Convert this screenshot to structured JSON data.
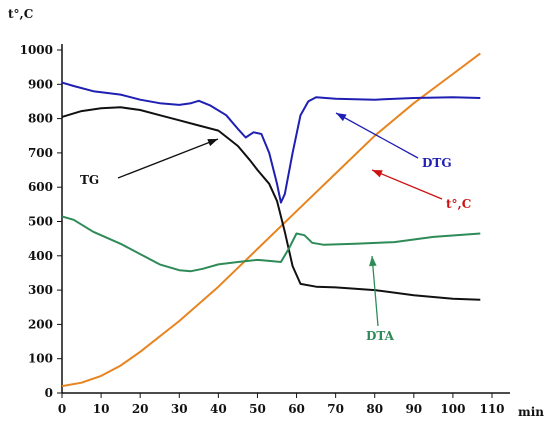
{
  "chart_data": {
    "type": "line",
    "ylabel": "t°,C",
    "xlabel": "min",
    "xlim": [
      0,
      110
    ],
    "ylim": [
      0,
      1000
    ],
    "x_ticks": [
      0,
      10,
      20,
      30,
      40,
      50,
      60,
      70,
      80,
      90,
      100,
      110
    ],
    "y_ticks": [
      0,
      100,
      200,
      300,
      400,
      500,
      600,
      700,
      800,
      900,
      1000
    ],
    "grid": false,
    "legend": "none",
    "series": [
      {
        "name": "t°,C",
        "color": "#e8841f",
        "points": [
          [
            0,
            20
          ],
          [
            5,
            30
          ],
          [
            10,
            50
          ],
          [
            15,
            80
          ],
          [
            20,
            120
          ],
          [
            30,
            210
          ],
          [
            40,
            310
          ],
          [
            50,
            420
          ],
          [
            60,
            530
          ],
          [
            70,
            640
          ],
          [
            80,
            750
          ],
          [
            90,
            845
          ],
          [
            100,
            930
          ],
          [
            107,
            990
          ]
        ]
      },
      {
        "name": "TG",
        "color": "#111111",
        "points": [
          [
            0,
            805
          ],
          [
            5,
            822
          ],
          [
            10,
            830
          ],
          [
            15,
            833
          ],
          [
            20,
            825
          ],
          [
            25,
            810
          ],
          [
            30,
            795
          ],
          [
            35,
            780
          ],
          [
            40,
            765
          ],
          [
            45,
            720
          ],
          [
            48,
            680
          ],
          [
            50,
            650
          ],
          [
            53,
            610
          ],
          [
            55,
            560
          ],
          [
            57,
            470
          ],
          [
            59,
            370
          ],
          [
            61,
            318
          ],
          [
            65,
            310
          ],
          [
            70,
            308
          ],
          [
            80,
            300
          ],
          [
            90,
            285
          ],
          [
            100,
            275
          ],
          [
            107,
            272
          ]
        ]
      },
      {
        "name": "DTG",
        "color": "#1f1fb3",
        "points": [
          [
            0,
            905
          ],
          [
            3,
            895
          ],
          [
            8,
            880
          ],
          [
            15,
            870
          ],
          [
            20,
            855
          ],
          [
            25,
            845
          ],
          [
            30,
            840
          ],
          [
            33,
            845
          ],
          [
            35,
            852
          ],
          [
            38,
            838
          ],
          [
            42,
            810
          ],
          [
            45,
            770
          ],
          [
            47,
            745
          ],
          [
            49,
            760
          ],
          [
            51,
            755
          ],
          [
            53,
            700
          ],
          [
            55,
            610
          ],
          [
            56,
            555
          ],
          [
            57,
            580
          ],
          [
            59,
            700
          ],
          [
            61,
            810
          ],
          [
            63,
            850
          ],
          [
            65,
            862
          ],
          [
            70,
            858
          ],
          [
            80,
            855
          ],
          [
            90,
            860
          ],
          [
            100,
            862
          ],
          [
            107,
            860
          ]
        ]
      },
      {
        "name": "DTA",
        "color": "#2e8b57",
        "points": [
          [
            0,
            515
          ],
          [
            3,
            505
          ],
          [
            8,
            470
          ],
          [
            15,
            435
          ],
          [
            20,
            405
          ],
          [
            25,
            375
          ],
          [
            30,
            358
          ],
          [
            33,
            355
          ],
          [
            36,
            362
          ],
          [
            40,
            375
          ],
          [
            45,
            382
          ],
          [
            50,
            388
          ],
          [
            53,
            385
          ],
          [
            56,
            382
          ],
          [
            58,
            420
          ],
          [
            60,
            465
          ],
          [
            62,
            460
          ],
          [
            64,
            438
          ],
          [
            67,
            432
          ],
          [
            75,
            435
          ],
          [
            85,
            440
          ],
          [
            95,
            455
          ],
          [
            107,
            465
          ]
        ]
      }
    ],
    "annotations": [
      {
        "text": "TG",
        "color": "#111111"
      },
      {
        "text": "DTG",
        "color": "#1f1fb3"
      },
      {
        "text": "t°,C",
        "color": "#cc1111"
      },
      {
        "text": "DTA",
        "color": "#2e8b57"
      }
    ]
  }
}
